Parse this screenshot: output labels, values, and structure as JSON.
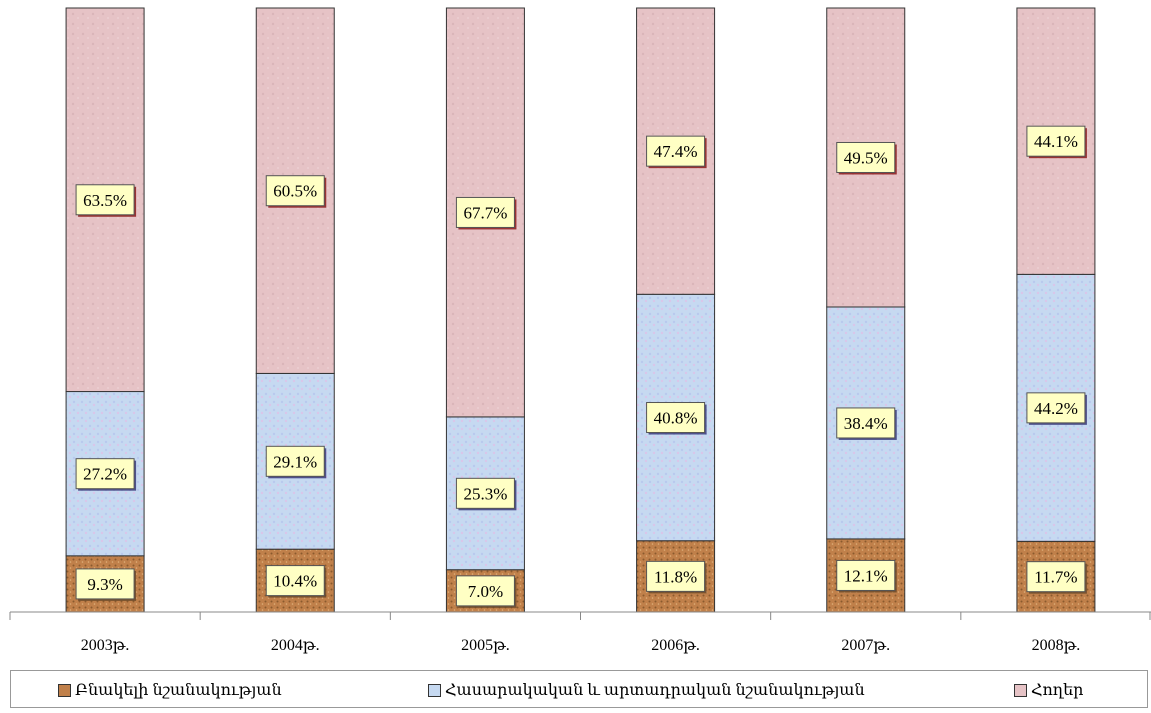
{
  "chart_data": {
    "type": "bar",
    "stacked": true,
    "categories": [
      "2003թ.",
      "2004թ.",
      "2005թ.",
      "2006թ.",
      "2007թ.",
      "2008թ."
    ],
    "series": [
      {
        "name": "Բնակելի նշանակության",
        "values": [
          9.3,
          10.4,
          7.0,
          11.8,
          12.1,
          11.7
        ],
        "labels": [
          "9.3%",
          "10.4%",
          "7.0%",
          "11.8%",
          "12.1%",
          "11.7%"
        ],
        "color": "#c0804a"
      },
      {
        "name": "Հասարակական և արտադրական նշանակության",
        "values": [
          27.2,
          29.1,
          25.3,
          40.8,
          38.4,
          44.2
        ],
        "labels": [
          "27.2%",
          "29.1%",
          "25.3%",
          "40.8%",
          "38.4%",
          "44.2%"
        ],
        "color": "#c6d9f1"
      },
      {
        "name": "Հողեր",
        "values": [
          63.5,
          60.5,
          67.7,
          47.4,
          49.5,
          44.1
        ],
        "labels": [
          "63.5%",
          "60.5%",
          "67.7%",
          "47.4%",
          "49.5%",
          "44.1%"
        ],
        "color": "#e6c3c6"
      }
    ],
    "ylim": [
      0,
      100
    ],
    "grid": false,
    "legend_position": "bottom"
  },
  "legend": {
    "items": [
      {
        "label": "Բնակելի նշանակության"
      },
      {
        "label": "Հասարակական և արտադրական նշանակության"
      },
      {
        "label": "Հողեր"
      }
    ]
  }
}
